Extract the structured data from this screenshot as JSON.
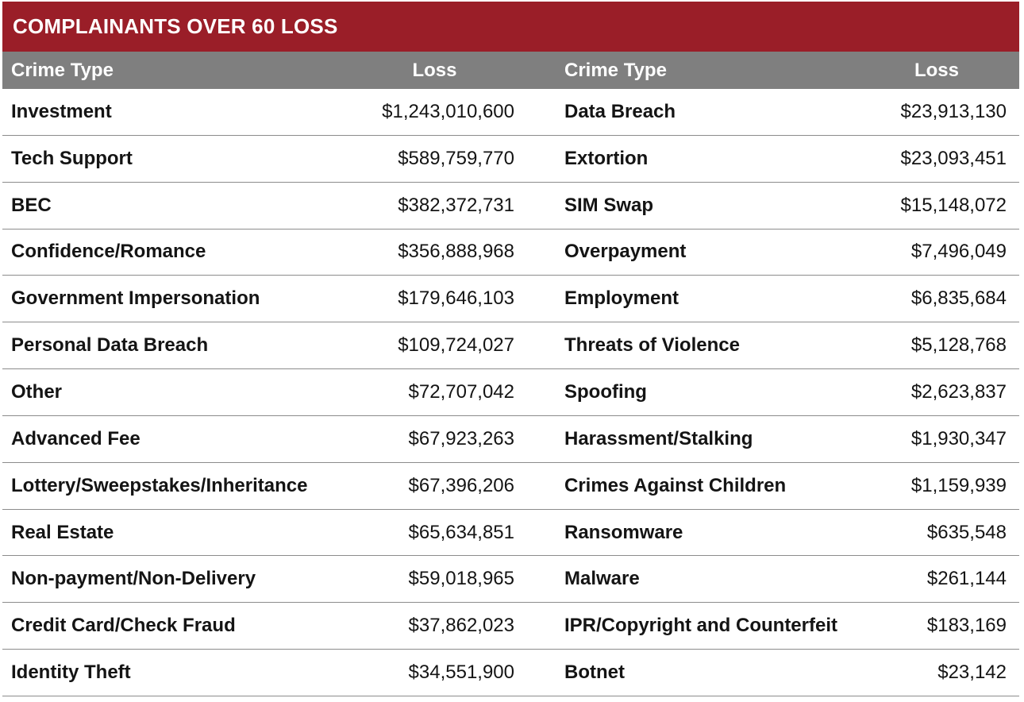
{
  "title": "COMPLAINANTS OVER 60 LOSS",
  "table": {
    "headers": [
      {
        "crime_type": "Crime Type",
        "loss": "Loss"
      },
      {
        "crime_type": "Crime Type",
        "loss": "Loss"
      }
    ],
    "left_rows": [
      {
        "crime_type": "Investment",
        "loss": "$1,243,010,600"
      },
      {
        "crime_type": "Tech Support",
        "loss": "$589,759,770"
      },
      {
        "crime_type": "BEC",
        "loss": "$382,372,731"
      },
      {
        "crime_type": "Confidence/Romance",
        "loss": "$356,888,968"
      },
      {
        "crime_type": "Government Impersonation",
        "loss": "$179,646,103"
      },
      {
        "crime_type": "Personal Data Breach",
        "loss": "$109,724,027"
      },
      {
        "crime_type": "Other",
        "loss": "$72,707,042"
      },
      {
        "crime_type": "Advanced Fee",
        "loss": "$67,923,263"
      },
      {
        "crime_type": "Lottery/Sweepstakes/Inheritance",
        "loss": "$67,396,206"
      },
      {
        "crime_type": "Real Estate",
        "loss": "$65,634,851"
      },
      {
        "crime_type": "Non-payment/Non-Delivery",
        "loss": "$59,018,965"
      },
      {
        "crime_type": "Credit Card/Check Fraud",
        "loss": "$37,862,023"
      },
      {
        "crime_type": "Identity Theft",
        "loss": "$34,551,900"
      }
    ],
    "right_rows": [
      {
        "crime_type": "Data Breach",
        "loss": "$23,913,130"
      },
      {
        "crime_type": "Extortion",
        "loss": "$23,093,451"
      },
      {
        "crime_type": "SIM Swap",
        "loss": "$15,148,072"
      },
      {
        "crime_type": "Overpayment",
        "loss": "$7,496,049"
      },
      {
        "crime_type": "Employment",
        "loss": "$6,835,684"
      },
      {
        "crime_type": "Threats of Violence",
        "loss": "$5,128,768"
      },
      {
        "crime_type": "Spoofing",
        "loss": "$2,623,837"
      },
      {
        "crime_type": "Harassment/Stalking",
        "loss": "$1,930,347"
      },
      {
        "crime_type": "Crimes Against Children",
        "loss": "$1,159,939"
      },
      {
        "crime_type": "Ransomware",
        "loss": "$635,548"
      },
      {
        "crime_type": "Malware",
        "loss": "$261,144"
      },
      {
        "crime_type": "IPR/Copyright and Counterfeit",
        "loss": "$183,169"
      },
      {
        "crime_type": "Botnet",
        "loss": "$23,142"
      }
    ]
  },
  "colors": {
    "header_red": "#9A1E28",
    "header_gray": "#7F7F7F",
    "divider": "#8C8C8C",
    "text": "#141414"
  }
}
